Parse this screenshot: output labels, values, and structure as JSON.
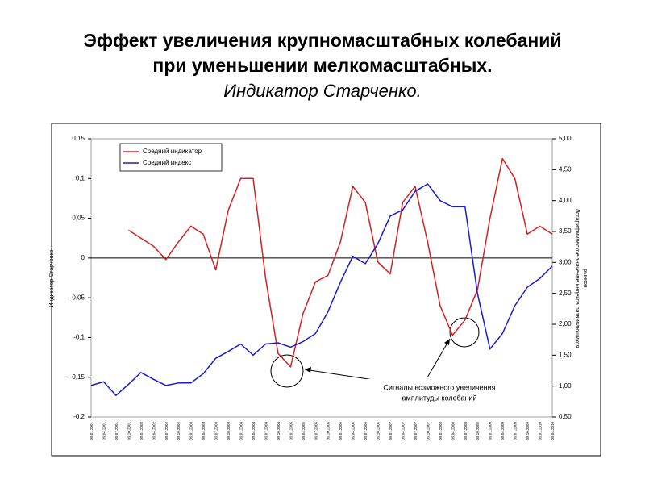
{
  "title_lines": [
    "Эффект увеличения крупномасштабных колебаний",
    "при уменьшении мелкомасштабных."
  ],
  "subtitle": "Индикатор  Старченко.",
  "chart_data": {
    "type": "line",
    "ylabel": "Индикатор Старченко",
    "y2label": [
      "Логарифмическое значение индекса развивающихся",
      "рынков"
    ],
    "categories": [
      "09.01.2001",
      "09.04.2001",
      "09.07.2001",
      "09.10.2001",
      "09.01.2002",
      "09.04.2002",
      "09.07.2002",
      "09.10.2002",
      "09.01.2003",
      "09.04.2003",
      "09.07.2003",
      "09.10.2003",
      "09.01.2004",
      "09.04.2004",
      "09.07.2004",
      "09.10.2004",
      "09.01.2005",
      "09.04.2005",
      "09.07.2005",
      "09.10.2005",
      "09.01.2006",
      "09.04.2006",
      "09.07.2006",
      "09.10.2006",
      "09.01.2007",
      "09.04.2007",
      "09.07.2007",
      "09.10.2007",
      "09.01.2008",
      "09.04.2008",
      "09.07.2008",
      "09.10.2008",
      "09.01.2009",
      "09.04.2009",
      "09.07.2009",
      "09.10.2009",
      "09.01.2010",
      "09.04.2010"
    ],
    "series": [
      {
        "name": "Средний индикатор",
        "color": "#d42020",
        "axis": "y",
        "values": [
          null,
          null,
          null,
          0.035,
          0.025,
          0.015,
          -0.002,
          0.02,
          0.04,
          0.03,
          -0.015,
          0.06,
          0.1,
          0.1,
          -0.025,
          -0.12,
          -0.137,
          -0.07,
          -0.03,
          -0.022,
          0.02,
          0.09,
          0.07,
          -0.005,
          -0.02,
          0.07,
          0.09,
          0.02,
          -0.06,
          -0.097,
          -0.078,
          -0.04,
          0.05,
          0.125,
          0.1,
          0.03,
          0.04,
          0.03
        ]
      },
      {
        "name": "Средний индекс",
        "color": "#1a1ad0",
        "axis": "y2",
        "values": [
          1.01,
          1.07,
          0.85,
          1.03,
          1.22,
          1.11,
          1.01,
          1.05,
          1.05,
          1.2,
          1.45,
          1.56,
          1.68,
          1.5,
          1.68,
          1.7,
          1.63,
          1.72,
          1.85,
          2.2,
          2.68,
          3.1,
          2.98,
          3.3,
          3.75,
          3.85,
          4.15,
          4.27,
          4.0,
          3.9,
          3.9,
          2.5,
          1.6,
          1.85,
          2.3,
          2.6,
          2.74,
          2.94
        ]
      }
    ],
    "ylim": [
      -0.2,
      0.15
    ],
    "yticks": [
      {
        "value": 0.15,
        "label": "0,15"
      },
      {
        "value": 0.1,
        "label": "0,1"
      },
      {
        "value": 0.05,
        "label": "0,05"
      },
      0,
      {
        "value": -0.05,
        "label": "-0,05"
      },
      {
        "value": -0.1,
        "label": "-0,1"
      },
      {
        "value": -0.15,
        "label": "-0,15"
      },
      {
        "value": -0.2,
        "label": "-0,2"
      }
    ],
    "y2lim": [
      0.5,
      5
    ],
    "y2ticks": [
      {
        "value": 5,
        "label": "5,00"
      },
      {
        "value": 4.5,
        "label": "4,50"
      },
      {
        "value": 4,
        "label": "4,00"
      },
      {
        "value": 3.5,
        "label": "3,50"
      },
      {
        "value": 3,
        "label": "3,00"
      },
      {
        "value": 2.5,
        "label": "2,50"
      },
      {
        "value": 2,
        "label": "2,00"
      },
      {
        "value": 1.5,
        "label": "1,50"
      },
      {
        "value": 1,
        "label": "1,00"
      },
      {
        "value": 0.5,
        "label": "0,50"
      }
    ],
    "zero_line": true,
    "legend": "top-left",
    "annotation": [
      "Сигналы возможного увеличения",
      "амплитуды колебаний"
    ]
  }
}
